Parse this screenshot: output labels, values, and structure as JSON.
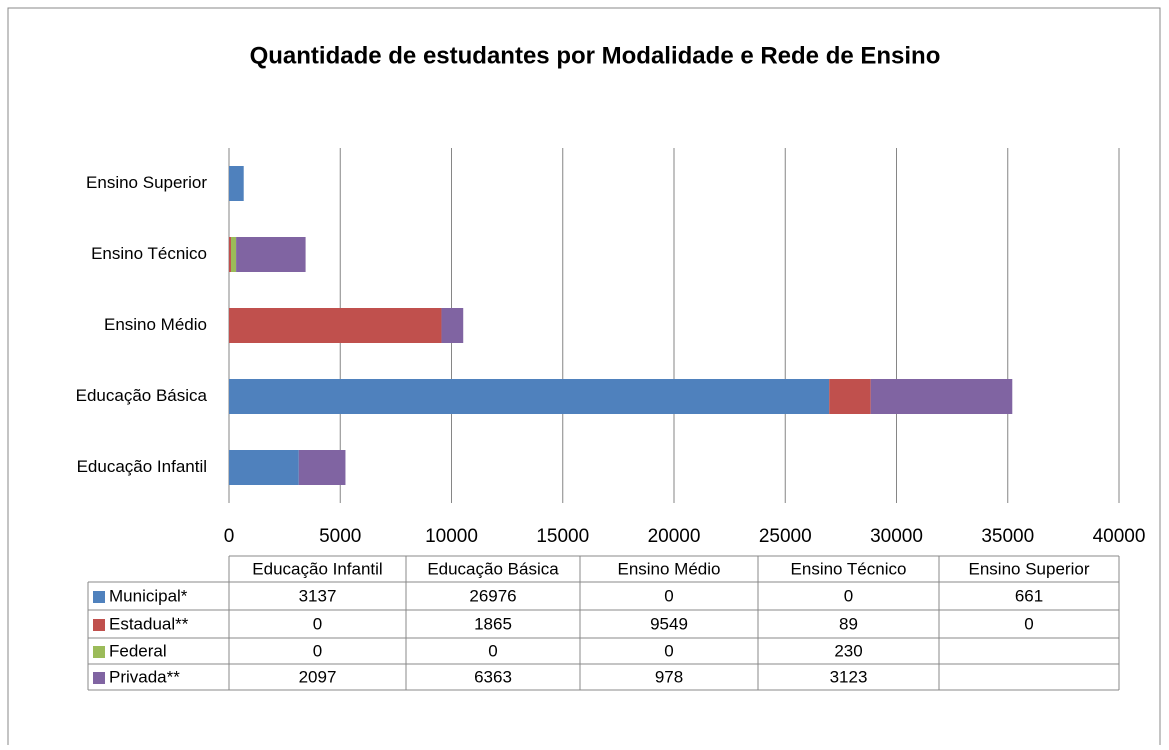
{
  "chart_data": {
    "type": "stacked_bar_horizontal",
    "title": "Quantidade de estudantes por Modalidade e Rede de Ensino",
    "categories": [
      "Educação Infantil",
      "Educação Básica",
      "Ensino Médio",
      "Ensino Técnico",
      "Ensino Superior"
    ],
    "series": [
      {
        "name": "Municipal*",
        "color": "#4f81bd",
        "values": [
          3137,
          26976,
          0,
          0,
          661
        ]
      },
      {
        "name": "Estadual**",
        "color": "#c0504d",
        "values": [
          0,
          1865,
          9549,
          89,
          0
        ]
      },
      {
        "name": "Federal",
        "color": "#9bbb59",
        "values": [
          0,
          0,
          0,
          230,
          null
        ]
      },
      {
        "name": "Privada**",
        "color": "#8064a2",
        "values": [
          2097,
          6363,
          978,
          3123,
          null
        ]
      }
    ],
    "xlim": [
      0,
      40000
    ],
    "xticks": [
      0,
      5000,
      10000,
      15000,
      20000,
      25000,
      30000,
      35000,
      40000
    ],
    "grid": true
  }
}
